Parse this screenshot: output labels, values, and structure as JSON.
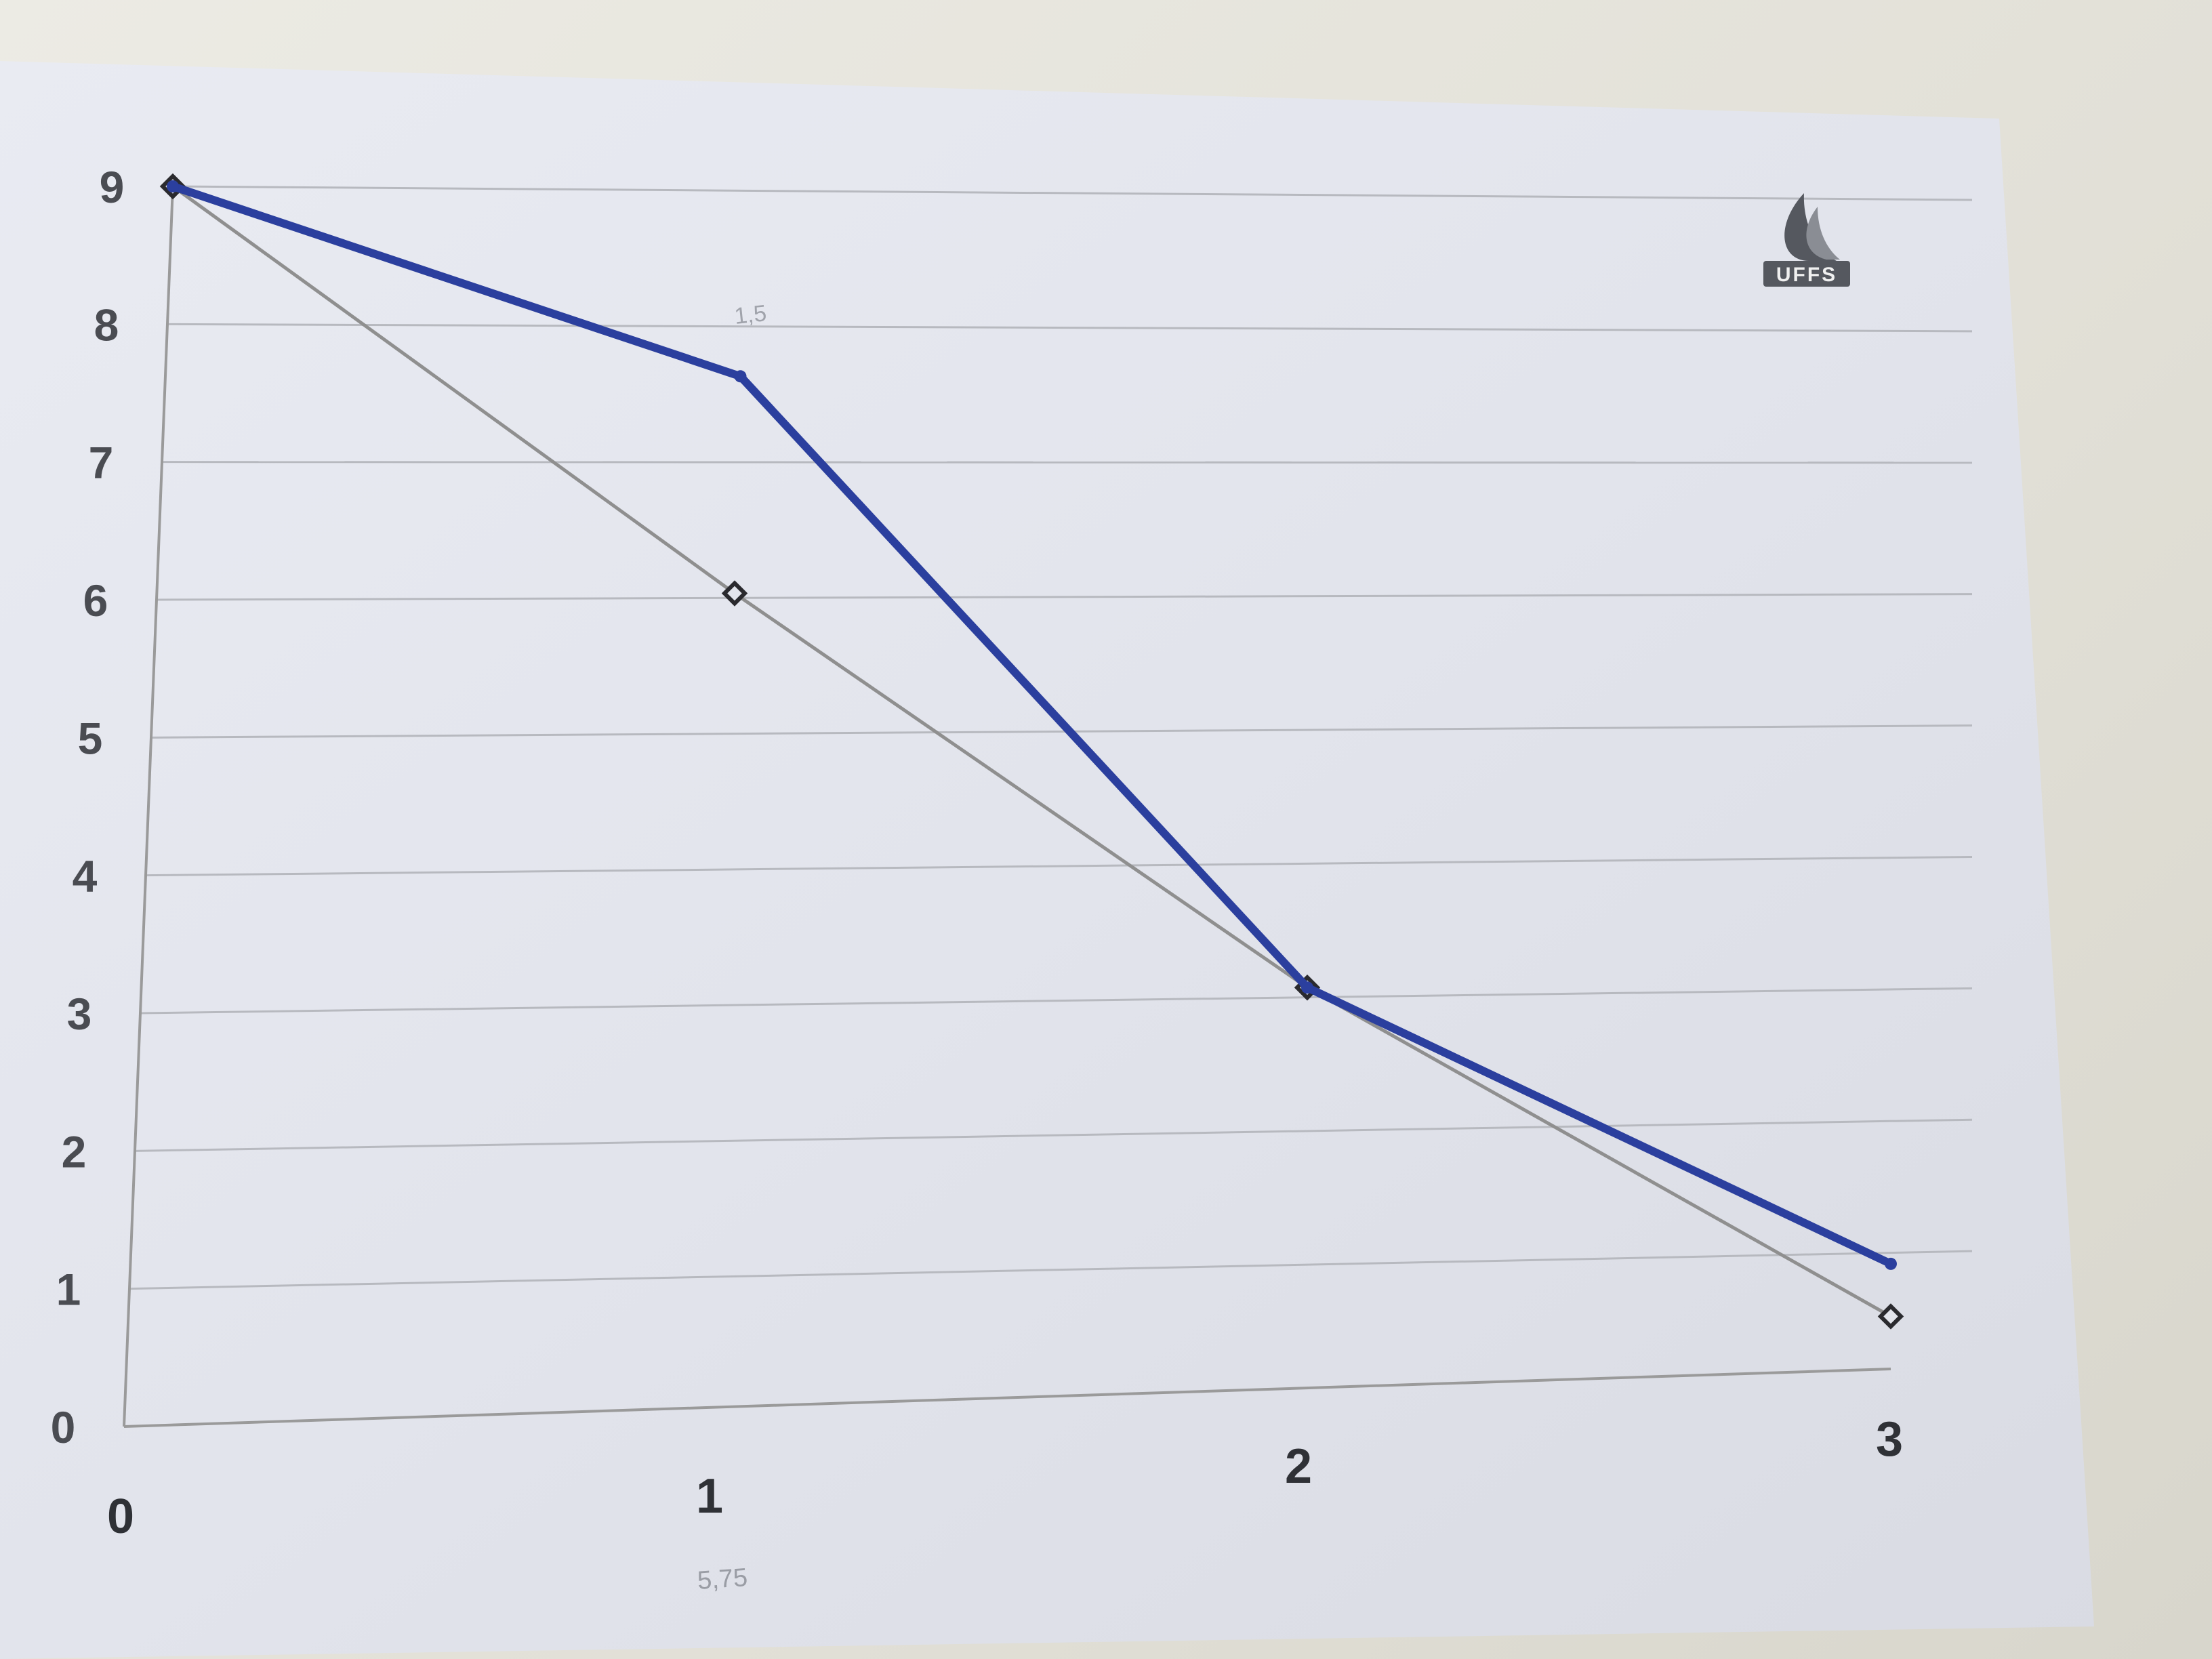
{
  "chart_data": {
    "type": "line",
    "title": "",
    "xlabel": "",
    "ylabel": "",
    "x_ticks": [
      "0",
      "1",
      "2",
      "3"
    ],
    "y_ticks": [
      "0",
      "1",
      "2",
      "3",
      "4",
      "5",
      "6",
      "7",
      "8",
      "9"
    ],
    "xlim": [
      0,
      3
    ],
    "ylim": [
      0,
      9
    ],
    "grid": true,
    "legend": "none",
    "series": [
      {
        "color": "#8f8f8f",
        "marker": "diamond",
        "x": [
          0,
          1,
          2,
          3
        ],
        "y": [
          9,
          6,
          3,
          0.4
        ]
      },
      {
        "color": "#2b3f9e",
        "marker": "none",
        "x": [
          0,
          1,
          2,
          3
        ],
        "y": [
          9,
          7.6,
          3,
          0.8
        ]
      }
    ],
    "annotations": [
      "1,5",
      "5,75"
    ]
  },
  "logo": {
    "text": "UFFS",
    "icon": "uffs-flame-logo"
  }
}
